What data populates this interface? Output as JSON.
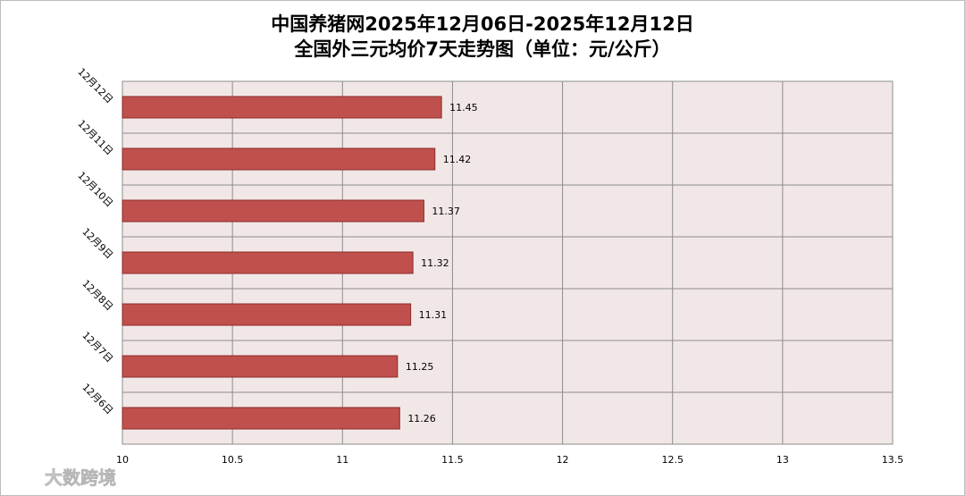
{
  "chart_data": {
    "type": "bar",
    "orientation": "horizontal",
    "title": "中国养猪网2025年12月06日-2025年12月12日",
    "subtitle": "全国外三元均价7天走势图（单位：元/公斤）",
    "categories": [
      "12月12日",
      "12月11日",
      "12月10日",
      "12月9日",
      "12月8日",
      "12月7日",
      "12月6日"
    ],
    "values": [
      11.45,
      11.42,
      11.37,
      11.32,
      11.31,
      11.25,
      11.26
    ],
    "color": "#c0504d",
    "xlim": [
      10,
      13.5
    ],
    "xticks": [
      10,
      10.5,
      11,
      11.5,
      12,
      12.5,
      13,
      13.5
    ],
    "grid": true,
    "watermark": "大数跨境"
  }
}
